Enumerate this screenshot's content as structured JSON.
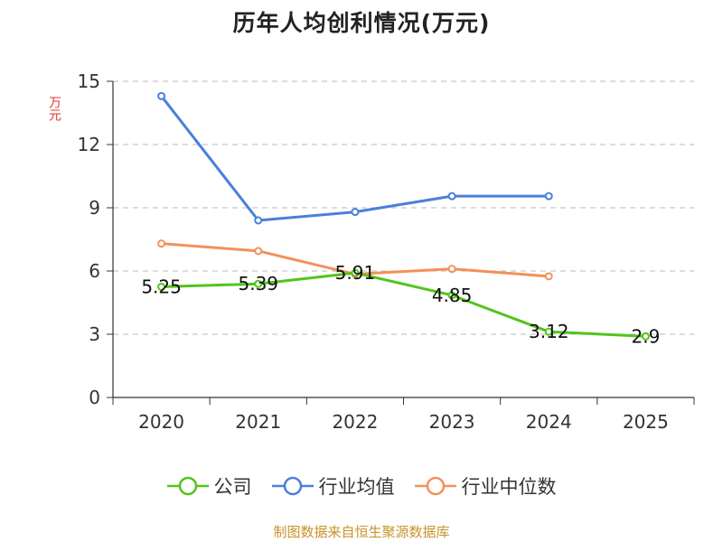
{
  "chart_data": {
    "type": "line",
    "title": "历年人均创利情况(万元)",
    "ylabel": "万元",
    "xlabel": "",
    "categories": [
      "2020",
      "2021",
      "2022",
      "2023",
      "2024",
      "2025"
    ],
    "ylim": [
      0,
      15
    ],
    "yticks": [
      0,
      3,
      6,
      9,
      12,
      15
    ],
    "grid": true,
    "legend_position": "bottom",
    "series": [
      {
        "name": "公司",
        "color": "#52c41a",
        "values": [
          5.25,
          5.39,
          5.91,
          4.85,
          3.12,
          2.9
        ],
        "labels": [
          "5.25",
          "5.39",
          "5.91",
          "4.85",
          "3.12",
          "2.9"
        ]
      },
      {
        "name": "行业均值",
        "color": "#4a7fdc",
        "values": [
          14.3,
          8.4,
          8.8,
          9.55,
          9.55,
          null
        ]
      },
      {
        "name": "行业中位数",
        "color": "#f4905a",
        "values": [
          7.3,
          6.95,
          5.85,
          6.1,
          5.75,
          null
        ]
      }
    ],
    "source": "制图数据来自恒生聚源数据库"
  }
}
